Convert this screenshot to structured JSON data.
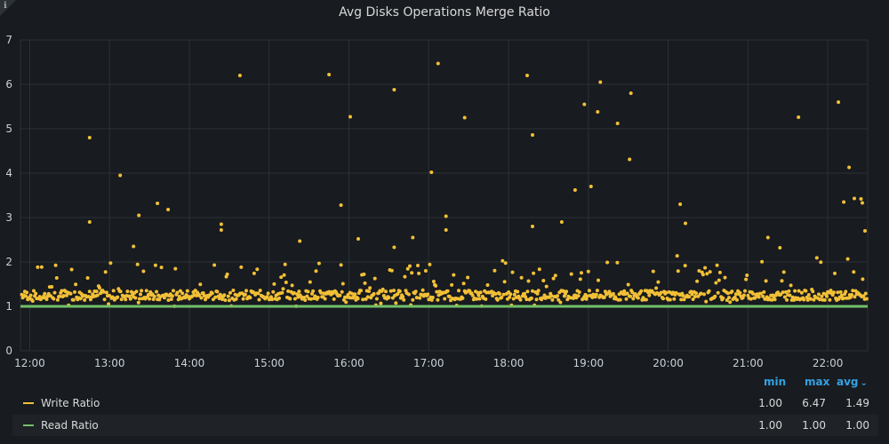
{
  "panel": {
    "title": "Avg Disks Operations Merge Ratio",
    "info_icon": "info-icon"
  },
  "colors": {
    "background": "#181b1f",
    "grid": "#2c3235",
    "write": "#f2c037",
    "read": "#73bf69",
    "legend_header": "#33a2e5"
  },
  "legend": {
    "headers": {
      "min": "min",
      "max": "max",
      "avg": "avg"
    },
    "sort_icon": "chevron-down-icon",
    "rows": [
      {
        "name": "Write Ratio",
        "min": "1.00",
        "max": "6.47",
        "avg": "1.49"
      },
      {
        "name": "Read Ratio",
        "min": "1.00",
        "max": "1.00",
        "avg": "1.00"
      }
    ]
  },
  "chart_data": {
    "type": "scatter",
    "title": "Avg Disks Operations Merge Ratio",
    "xlabel": "",
    "ylabel": "",
    "x_ticks": [
      "12:00",
      "13:00",
      "14:00",
      "15:00",
      "16:00",
      "17:00",
      "18:00",
      "19:00",
      "20:00",
      "21:00",
      "22:00"
    ],
    "y_ticks": [
      0,
      1,
      2,
      3,
      4,
      5,
      6,
      7
    ],
    "xlim": [
      "11:53",
      "22:30"
    ],
    "ylim": [
      0,
      7
    ],
    "grid": true,
    "legend_position": "bottom",
    "series": [
      {
        "name": "Write Ratio",
        "style": "points",
        "baseline": 1.25,
        "outliers": [
          {
            "x": "12:45",
            "y": 4.8
          },
          {
            "x": "12:45",
            "y": 2.9
          },
          {
            "x": "13:08",
            "y": 3.95
          },
          {
            "x": "13:18",
            "y": 2.35
          },
          {
            "x": "13:22",
            "y": 3.05
          },
          {
            "x": "13:36",
            "y": 3.32
          },
          {
            "x": "13:44",
            "y": 3.18
          },
          {
            "x": "14:24",
            "y": 2.85
          },
          {
            "x": "14:24",
            "y": 2.72
          },
          {
            "x": "14:38",
            "y": 6.2
          },
          {
            "x": "15:23",
            "y": 2.47
          },
          {
            "x": "15:45",
            "y": 6.22
          },
          {
            "x": "15:54",
            "y": 3.28
          },
          {
            "x": "16:01",
            "y": 5.27
          },
          {
            "x": "16:07",
            "y": 2.52
          },
          {
            "x": "16:34",
            "y": 5.88
          },
          {
            "x": "16:34",
            "y": 2.33
          },
          {
            "x": "16:48",
            "y": 2.55
          },
          {
            "x": "17:02",
            "y": 4.02
          },
          {
            "x": "17:07",
            "y": 6.47
          },
          {
            "x": "17:13",
            "y": 3.03
          },
          {
            "x": "17:13",
            "y": 2.72
          },
          {
            "x": "17:27",
            "y": 5.25
          },
          {
            "x": "18:14",
            "y": 6.2
          },
          {
            "x": "18:18",
            "y": 4.86
          },
          {
            "x": "18:18",
            "y": 2.8
          },
          {
            "x": "18:40",
            "y": 2.9
          },
          {
            "x": "18:50",
            "y": 3.62
          },
          {
            "x": "18:57",
            "y": 5.55
          },
          {
            "x": "19:02",
            "y": 3.7
          },
          {
            "x": "19:07",
            "y": 5.38
          },
          {
            "x": "19:09",
            "y": 6.05
          },
          {
            "x": "19:22",
            "y": 5.12
          },
          {
            "x": "19:31",
            "y": 4.31
          },
          {
            "x": "19:32",
            "y": 5.8
          },
          {
            "x": "20:09",
            "y": 3.3
          },
          {
            "x": "20:13",
            "y": 2.87
          },
          {
            "x": "21:15",
            "y": 2.55
          },
          {
            "x": "21:24",
            "y": 2.32
          },
          {
            "x": "21:38",
            "y": 5.26
          },
          {
            "x": "22:08",
            "y": 5.6
          },
          {
            "x": "22:12",
            "y": 3.35
          },
          {
            "x": "22:16",
            "y": 4.13
          },
          {
            "x": "22:20",
            "y": 3.43
          },
          {
            "x": "22:25",
            "y": 3.42
          },
          {
            "x": "22:26",
            "y": 3.33
          },
          {
            "x": "22:28",
            "y": 2.7
          }
        ]
      },
      {
        "name": "Read Ratio",
        "style": "line",
        "x": [
          "11:53",
          "22:30"
        ],
        "y": [
          1.0,
          1.0
        ]
      }
    ]
  }
}
